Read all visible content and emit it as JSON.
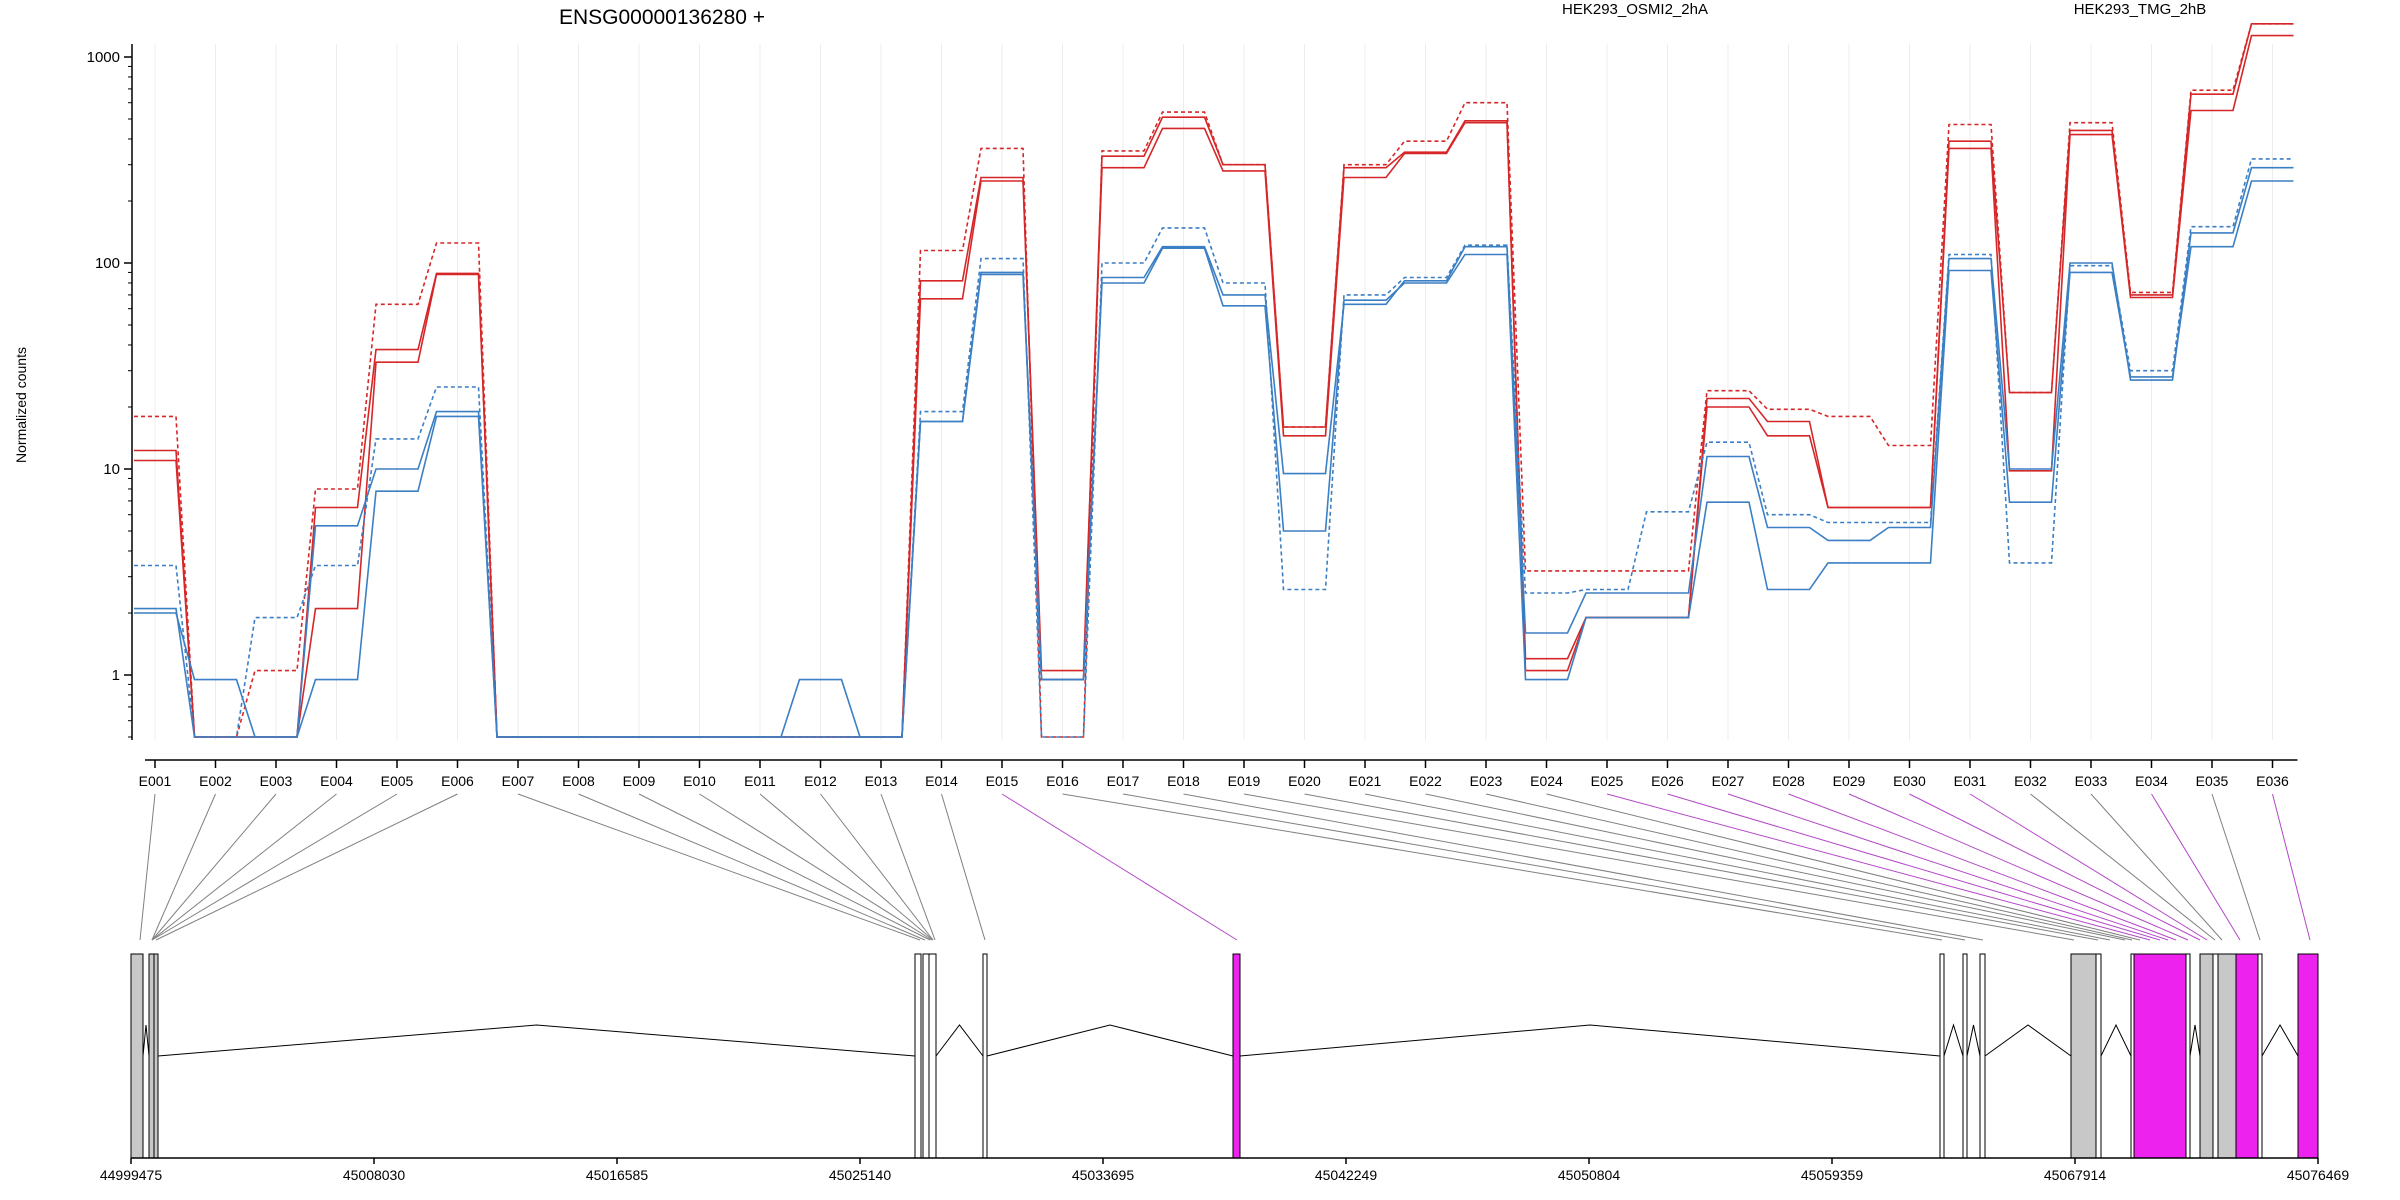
{
  "title": "ENSG00000136280 +",
  "legend": {
    "items": [
      {
        "label": "HEK293_OSMI2_2hA",
        "color": "#d62728"
      },
      {
        "label": "HEK293_TMG_2hB",
        "color": "#3b7fc4"
      }
    ]
  },
  "chart_data": {
    "type": "line",
    "ylabel": "Normalized counts",
    "yscale": "log",
    "ylim": [
      0.45,
      2000
    ],
    "yticks": [
      1,
      10,
      100,
      1000
    ],
    "ytick_labels": [
      "1",
      "10",
      "100",
      "1000"
    ],
    "categories": [
      "E001",
      "E002",
      "E003",
      "E004",
      "E005",
      "E006",
      "E007",
      "E008",
      "E009",
      "E010",
      "E011",
      "E012",
      "E013",
      "E014",
      "E015",
      "E016",
      "E017",
      "E018",
      "E019",
      "E020",
      "E021",
      "E022",
      "E023",
      "E024",
      "E025",
      "E026",
      "E027",
      "E028",
      "E029",
      "E030",
      "E031",
      "E032",
      "E033",
      "E034",
      "E035",
      "E036"
    ],
    "series": [
      {
        "group": "HEK293_OSMI2_2hA",
        "color": "#d62728",
        "dash": false,
        "values": [
          12.3,
          0.5,
          0.5,
          6.5,
          38,
          89,
          0.5,
          0.5,
          0.5,
          0.5,
          0.5,
          0.5,
          0.5,
          82,
          260,
          0.95,
          330,
          510,
          300,
          16,
          290,
          345,
          490,
          1.05,
          1.9,
          1.9,
          22,
          17,
          6.5,
          6.5,
          390,
          23.5,
          440,
          70,
          660,
          1450
        ]
      },
      {
        "group": "HEK293_OSMI2_2hA",
        "color": "#d62728",
        "dash": false,
        "values": [
          11,
          0.5,
          0.5,
          2.1,
          33,
          88,
          0.5,
          0.5,
          0.5,
          0.5,
          0.5,
          0.5,
          0.5,
          67,
          250,
          1.05,
          290,
          450,
          280,
          14.5,
          260,
          340,
          480,
          1.2,
          1.9,
          1.9,
          20,
          14.5,
          6.5,
          6.5,
          360,
          9.8,
          420,
          68,
          550,
          1270
        ]
      },
      {
        "group": "HEK293_OSMI2_2hA",
        "color": "#d62728",
        "dash": true,
        "values": [
          18,
          0.5,
          1.05,
          8,
          63,
          125,
          0.5,
          0.5,
          0.5,
          0.5,
          0.5,
          0.5,
          0.5,
          115,
          360,
          0.5,
          350,
          540,
          300,
          16,
          300,
          390,
          600,
          3.2,
          3.2,
          3.2,
          24,
          19.5,
          18,
          13,
          470,
          23.5,
          480,
          72,
          690,
          1450
        ]
      },
      {
        "group": "HEK293_TMG_2hB",
        "color": "#3b7fc4",
        "dash": false,
        "values": [
          2.1,
          0.5,
          0.5,
          5.3,
          10,
          19,
          0.5,
          0.5,
          0.5,
          0.5,
          0.5,
          0.5,
          0.5,
          17,
          88,
          0.95,
          85,
          120,
          70,
          9.5,
          63,
          82,
          120,
          1.6,
          2.5,
          2.5,
          11.5,
          5.2,
          4.5,
          5.2,
          105,
          10,
          100,
          27,
          140,
          290
        ]
      },
      {
        "group": "HEK293_TMG_2hB",
        "color": "#3b7fc4",
        "dash": false,
        "values": [
          2,
          0.95,
          0.5,
          0.95,
          7.8,
          18,
          0.5,
          0.5,
          0.5,
          0.5,
          0.5,
          0.95,
          0.5,
          17,
          90,
          0.95,
          80,
          118,
          62,
          5,
          66,
          80,
          110,
          0.95,
          1.9,
          1.9,
          6.9,
          2.6,
          3.5,
          3.5,
          92,
          6.9,
          90,
          28,
          120,
          250
        ]
      },
      {
        "group": "HEK293_TMG_2hB",
        "color": "#3b7fc4",
        "dash": true,
        "values": [
          3.4,
          0.5,
          1.9,
          3.4,
          14,
          25,
          0.5,
          0.5,
          0.5,
          0.5,
          0.5,
          0.5,
          0.5,
          19,
          105,
          0.5,
          100,
          148,
          80,
          2.6,
          70,
          85,
          122,
          2.5,
          2.6,
          6.2,
          13.5,
          6,
          5.5,
          5.5,
          110,
          3.5,
          97,
          30,
          150,
          320
        ]
      }
    ]
  },
  "gene_model": {
    "coord_labels": [
      "44999475",
      "45008030",
      "45016585",
      "45025140",
      "45033695",
      "45042249",
      "45050804",
      "45059359",
      "45067914",
      "45076469"
    ],
    "fill_normal": "#c8c8c8",
    "fill_highlight": "#ee22ee"
  }
}
